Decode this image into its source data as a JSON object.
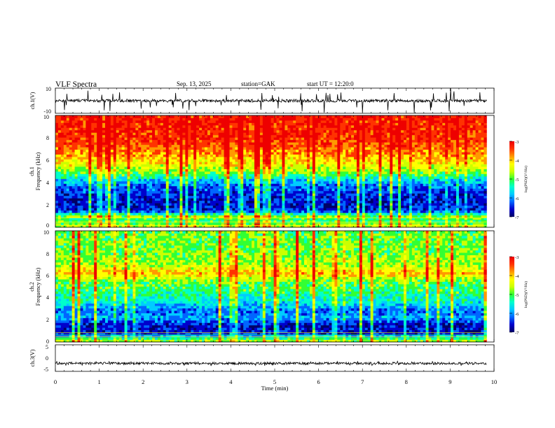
{
  "header": {
    "title": "VLF Spectra",
    "date": "Sep. 13, 2025",
    "station": "station=GAK",
    "start": "start UT = 12:20:0"
  },
  "colors": {
    "ramp": [
      "#000066",
      "#0000cc",
      "#0066ff",
      "#00ccff",
      "#00ffcc",
      "#33ff33",
      "#ccff00",
      "#ffff00",
      "#ff9900",
      "#ff3300",
      "#ee0000"
    ]
  },
  "chart_data": [
    {
      "type": "line",
      "panel": "ch1-waveform",
      "ylabel": "ch.1(V)",
      "ylim": [
        -10,
        10
      ],
      "y_ticks": [
        "10",
        "-10"
      ],
      "baseline": 0,
      "xlim": [
        0,
        10
      ],
      "data_end_min": 9.83
    },
    {
      "type": "heatmap",
      "panel": "ch1-spectrogram",
      "ylabel_lines": [
        "ch.1",
        "Frequency (kHz)"
      ],
      "ylim": [
        0,
        10
      ],
      "y_ticks": [
        "0",
        "2",
        "4",
        "6",
        "8",
        "10"
      ],
      "xlim": [
        0,
        10
      ],
      "colorbar": {
        "label": "log(PSD)(V²/Hz)",
        "range": [
          -7,
          -3
        ],
        "ticks": [
          "-3",
          "-4",
          "-5",
          "-6",
          "-7"
        ]
      },
      "profile_khz_vs_logpsd": [
        [
          0.2,
          -4.6
        ],
        [
          0.6,
          -5.2
        ],
        [
          1.0,
          -4.8
        ],
        [
          1.5,
          -6.5
        ],
        [
          2.5,
          -6.6
        ],
        [
          3.5,
          -6.3
        ],
        [
          4.2,
          -5.8
        ],
        [
          4.8,
          -5.0
        ],
        [
          5.5,
          -4.4
        ],
        [
          6.5,
          -3.8
        ],
        [
          8.0,
          -3.3
        ],
        [
          9.9,
          -3.2
        ]
      ]
    },
    {
      "type": "heatmap",
      "panel": "ch2-spectrogram",
      "ylabel_lines": [
        "ch.2",
        "Frequency (kHz)"
      ],
      "ylim": [
        0,
        10
      ],
      "y_ticks": [
        "0",
        "2",
        "4",
        "6",
        "8",
        "10"
      ],
      "xlim": [
        0,
        10
      ],
      "colorbar": {
        "label": "log(PSD)(V²/Hz)",
        "range": [
          -7,
          -3
        ],
        "ticks": [
          "-3",
          "-4",
          "-5",
          "-6",
          "-7"
        ]
      },
      "profile_khz_vs_logpsd": [
        [
          0.2,
          -4.8
        ],
        [
          0.8,
          -6.6
        ],
        [
          1.5,
          -6.7
        ],
        [
          2.2,
          -5.9
        ],
        [
          2.8,
          -6.2
        ],
        [
          3.5,
          -5.6
        ],
        [
          4.5,
          -5.2
        ],
        [
          5.5,
          -4.9
        ],
        [
          6.2,
          -4.0
        ],
        [
          7.0,
          -4.7
        ],
        [
          8.5,
          -4.9
        ],
        [
          9.9,
          -4.9
        ]
      ]
    },
    {
      "type": "line",
      "panel": "ch3-waveform",
      "ylabel": "ch.3(V)",
      "ylim": [
        -5,
        5
      ],
      "y_ticks": [
        "5",
        "0",
        "-5"
      ],
      "baseline": -2,
      "xlim": [
        0,
        10
      ],
      "data_end_min": 9.83
    }
  ],
  "x_axis": {
    "label": "Time (min)",
    "ticks": [
      "0",
      "1",
      "2",
      "3",
      "4",
      "5",
      "6",
      "7",
      "8",
      "9",
      "10"
    ]
  }
}
